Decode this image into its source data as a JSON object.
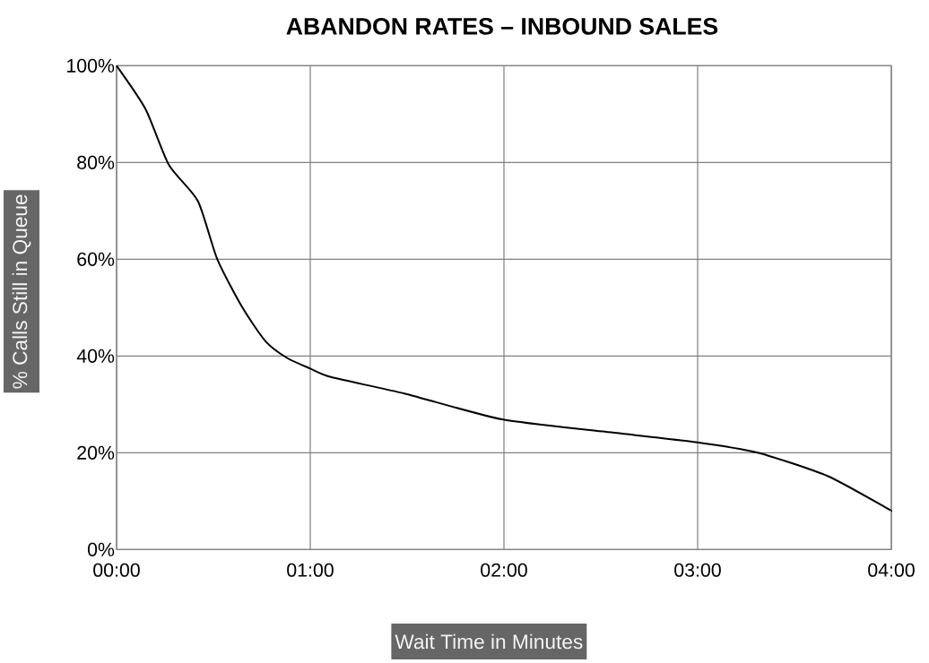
{
  "chart_data": {
    "type": "line",
    "title": "ABANDON RATES – INBOUND SALES",
    "xlabel": "Wait Time in Minutes",
    "ylabel": "% Calls Still in Queue",
    "x": [
      0,
      0.15,
      0.27,
      0.42,
      0.52,
      0.65,
      0.77,
      0.88,
      1.0,
      1.11,
      1.49,
      1.99,
      2.51,
      2.99,
      3.31,
      3.67,
      3.97,
      4.0
    ],
    "series": [
      {
        "color": "#000000",
        "values": [
          100,
          91,
          79.5,
          72,
          60,
          50,
          43,
          39.6,
          37.4,
          35.6,
          32.2,
          26.9,
          24.4,
          22.2,
          20,
          15.2,
          8.7,
          8
        ]
      }
    ],
    "xlim": [
      0,
      4
    ],
    "ylim": [
      0,
      100
    ],
    "xticks": [
      {
        "value": 0,
        "label": "00:00"
      },
      {
        "value": 1,
        "label": "01:00"
      },
      {
        "value": 2,
        "label": "02:00"
      },
      {
        "value": 3,
        "label": "03:00"
      },
      {
        "value": 4,
        "label": "04:00"
      }
    ],
    "yticks": [
      {
        "value": 0,
        "label": "0%"
      },
      {
        "value": 20,
        "label": "20%"
      },
      {
        "value": 40,
        "label": "40%"
      },
      {
        "value": 60,
        "label": "60%"
      },
      {
        "value": 80,
        "label": "80%"
      },
      {
        "value": 100,
        "label": "100%"
      }
    ],
    "grid": true,
    "marker": "none",
    "line_style": "solid"
  }
}
